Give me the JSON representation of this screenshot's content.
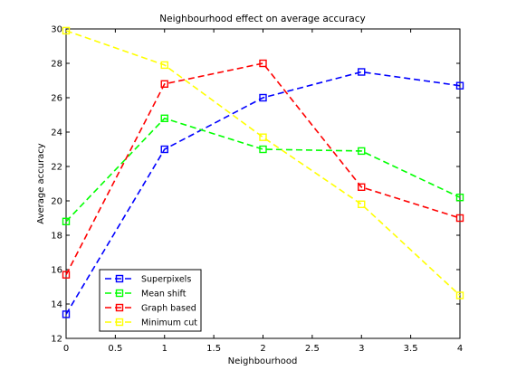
{
  "chart_data": {
    "type": "line",
    "title": "Neighbourhood effect on average accuracy",
    "xlabel": "Neighbourhood",
    "ylabel": "Average accuracy",
    "xlim": [
      0,
      4
    ],
    "ylim": [
      12,
      30
    ],
    "xticks": [
      "0",
      "0.5",
      "1",
      "1.5",
      "2",
      "2.5",
      "3",
      "3.5",
      "4"
    ],
    "yticks": [
      "12",
      "14",
      "16",
      "18",
      "20",
      "22",
      "24",
      "26",
      "28",
      "30"
    ],
    "grid": false,
    "legend_position": "bottom-left",
    "x": [
      0,
      1,
      2,
      3,
      4
    ],
    "series": [
      {
        "name": "Superpixels",
        "color": "#0000ff",
        "values": [
          13.4,
          23.0,
          26.0,
          27.5,
          26.7
        ]
      },
      {
        "name": "Mean shift",
        "color": "#00ff00",
        "values": [
          18.8,
          24.8,
          23.0,
          22.9,
          20.2
        ]
      },
      {
        "name": "Graph based",
        "color": "#ff0000",
        "values": [
          15.7,
          26.8,
          28.0,
          20.8,
          19.0
        ]
      },
      {
        "name": "Minimum cut",
        "color": "#ffff00",
        "values": [
          29.9,
          27.9,
          23.7,
          19.8,
          14.5
        ]
      }
    ]
  }
}
